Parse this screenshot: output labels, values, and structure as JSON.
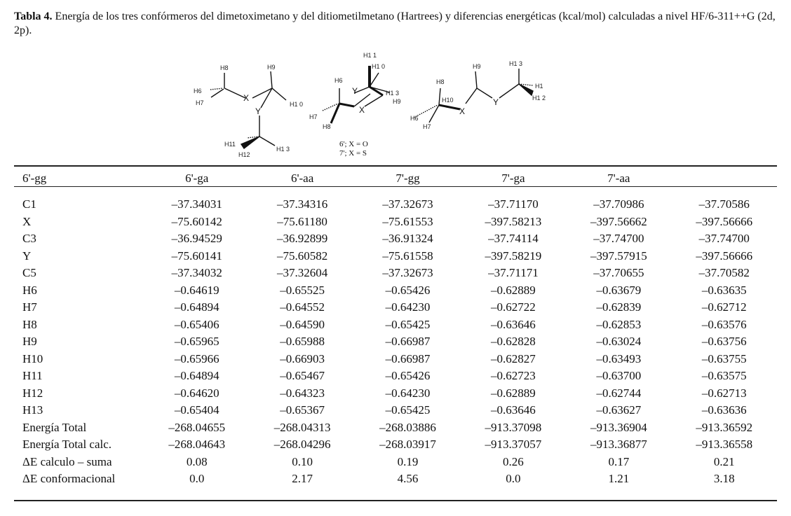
{
  "caption": {
    "label": "Tabla 4.",
    "text": " Energía de los tres confórmeros del dimetoximetano y del ditiometilmetano (Hartrees) y diferencias energéticas (kcal/mol) calculadas a nivel HF/6-311++G (2d, 2p)."
  },
  "figure": {
    "legend_line1": "6'; X = O",
    "legend_line2": "7'; X = S",
    "mol1": {
      "H8": "H8",
      "H9": "H9",
      "H6": "H6",
      "X": "X",
      "H10": "H1 0",
      "H7": "H7",
      "Y": "Y",
      "H11": "H11",
      "H13": "H1 3",
      "H12": "H12"
    },
    "mol2": {
      "H11": "H1 1",
      "H10": "H1 0",
      "H6": "H6",
      "Y": "Y",
      "H13": "H1 3",
      "H9": "H9",
      "X": "X",
      "H7": "H7",
      "H8": "H8"
    },
    "mol3": {
      "H13": "H1 3",
      "H9": "H9",
      "H8": "H8",
      "H1": "H1",
      "H10": "H10",
      "H12": "H1 2",
      "Y": "Y",
      "X": "X",
      "H6": "H6",
      "H7": "H7"
    }
  },
  "table": {
    "headers": [
      "6'-gg",
      "6'-ga",
      "6'-aa",
      "7'-gg",
      "7'-ga",
      "7'-aa",
      ""
    ],
    "rows": [
      [
        "C1",
        "–37.34031",
        "–37.34316",
        "–37.32673",
        "–37.71170",
        "–37.70986",
        "–37.70586"
      ],
      [
        "X",
        "–75.60142",
        "–75.61180",
        "–75.61553",
        "–397.58213",
        "–397.56662",
        "–397.56666"
      ],
      [
        "C3",
        "–36.94529",
        "–36.92899",
        "–36.91324",
        "–37.74114",
        "–37.74700",
        "–37.74700"
      ],
      [
        "Y",
        "–75.60141",
        "–75.60582",
        "–75.61558",
        "–397.58219",
        "–397.57915",
        "–397.56666"
      ],
      [
        "C5",
        "–37.34032",
        "–37.32604",
        "–37.32673",
        "–37.71171",
        "–37.70655",
        "–37.70582"
      ],
      [
        "H6",
        "–0.64619",
        "–0.65525",
        "–0.65426",
        "–0.62889",
        "–0.63679",
        "–0.63635"
      ],
      [
        "H7",
        "–0.64894",
        "–0.64552",
        "–0.64230",
        "–0.62722",
        "–0.62839",
        "–0.62712"
      ],
      [
        "H8",
        "–0.65406",
        "–0.64590",
        "–0.65425",
        "–0.63646",
        "–0.62853",
        "–0.63576"
      ],
      [
        "H9",
        "–0.65965",
        "–0.65988",
        "–0.66987",
        "–0.62828",
        "–0.63024",
        "–0.63756"
      ],
      [
        "H10",
        "–0.65966",
        "–0.66903",
        "–0.66987",
        "–0.62827",
        "–0.63493",
        "–0.63755"
      ],
      [
        "H11",
        "–0.64894",
        "–0.65467",
        "–0.65426",
        "–0.62723",
        "–0.63700",
        "–0.63575"
      ],
      [
        "H12",
        "–0.64620",
        "–0.64323",
        "–0.64230",
        "–0.62889",
        "–0.62744",
        "–0.62713"
      ],
      [
        "H13",
        "–0.65404",
        "–0.65367",
        "–0.65425",
        "–0.63646",
        "–0.63627",
        "–0.63636"
      ],
      [
        "Energía Total",
        "–268.04655",
        "–268.04313",
        "–268.03886",
        "–913.37098",
        "–913.36904",
        "–913.36592"
      ],
      [
        "Energía Total calc.",
        "–268.04643",
        "–268.04296",
        "–268.03917",
        "–913.37057",
        "–913.36877",
        "–913.36558"
      ],
      [
        "ΔE calculo – suma",
        "0.08",
        "0.10",
        "0.19",
        "0.26",
        "0.17",
        "0.21"
      ],
      [
        "ΔE conformacional",
        "0.0",
        "2.17",
        "4.56",
        "0.0",
        "1.21",
        "3.18"
      ]
    ]
  }
}
